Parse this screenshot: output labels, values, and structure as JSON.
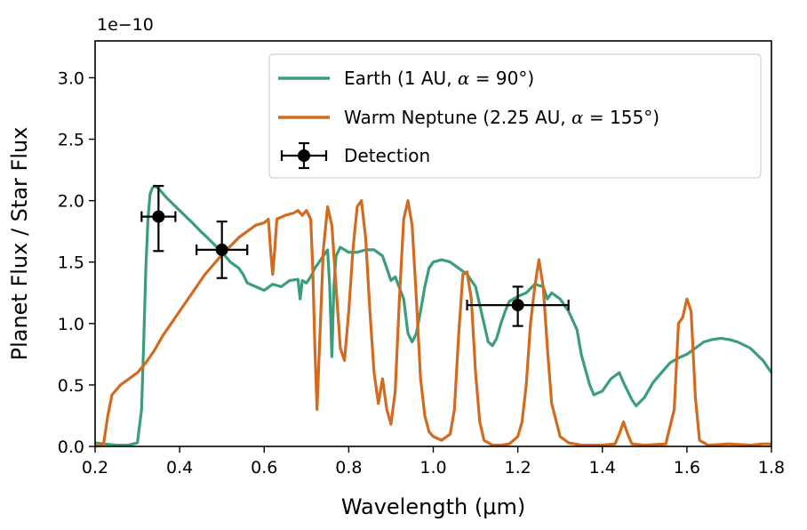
{
  "chart_data": {
    "type": "line",
    "xlabel": "Wavelength (μm)",
    "ylabel": "Planet Flux / Star Flux",
    "y_offset_label": "1e−10",
    "xlim": [
      0.2,
      1.8
    ],
    "ylim": [
      0,
      3.3
    ],
    "xticks": [
      "0.2",
      "0.4",
      "0.6",
      "0.8",
      "1.0",
      "1.2",
      "1.4",
      "1.6",
      "1.8"
    ],
    "yticks": [
      "0.0",
      "0.5",
      "1.0",
      "1.5",
      "2.0",
      "2.5",
      "3.0"
    ],
    "grid": false,
    "legend_position": "top-right",
    "series": [
      {
        "name": "Earth (1 AU,  α = 90°)",
        "legend_prefix": "Earth (1 AU,  ",
        "legend_var": "α",
        "legend_value": " = 90",
        "legend_suffix": "°)",
        "color": "#3a9e7a",
        "points": [
          [
            0.2,
            0.03
          ],
          [
            0.22,
            0.02
          ],
          [
            0.25,
            0.01
          ],
          [
            0.28,
            0.01
          ],
          [
            0.3,
            0.03
          ],
          [
            0.31,
            0.3
          ],
          [
            0.315,
            0.85
          ],
          [
            0.32,
            1.45
          ],
          [
            0.325,
            1.85
          ],
          [
            0.33,
            2.05
          ],
          [
            0.335,
            2.1
          ],
          [
            0.34,
            2.12
          ],
          [
            0.35,
            2.1
          ],
          [
            0.37,
            2.02
          ],
          [
            0.4,
            1.92
          ],
          [
            0.43,
            1.82
          ],
          [
            0.45,
            1.75
          ],
          [
            0.48,
            1.65
          ],
          [
            0.5,
            1.58
          ],
          [
            0.52,
            1.5
          ],
          [
            0.54,
            1.45
          ],
          [
            0.55,
            1.4
          ],
          [
            0.56,
            1.33
          ],
          [
            0.58,
            1.3
          ],
          [
            0.6,
            1.27
          ],
          [
            0.62,
            1.32
          ],
          [
            0.64,
            1.3
          ],
          [
            0.66,
            1.35
          ],
          [
            0.68,
            1.36
          ],
          [
            0.685,
            1.2
          ],
          [
            0.69,
            1.35
          ],
          [
            0.7,
            1.33
          ],
          [
            0.71,
            1.38
          ],
          [
            0.72,
            1.45
          ],
          [
            0.74,
            1.55
          ],
          [
            0.75,
            1.6
          ],
          [
            0.755,
            1.3
          ],
          [
            0.76,
            0.73
          ],
          [
            0.765,
            1.3
          ],
          [
            0.77,
            1.55
          ],
          [
            0.78,
            1.62
          ],
          [
            0.8,
            1.58
          ],
          [
            0.82,
            1.58
          ],
          [
            0.84,
            1.6
          ],
          [
            0.86,
            1.6
          ],
          [
            0.88,
            1.55
          ],
          [
            0.89,
            1.45
          ],
          [
            0.9,
            1.35
          ],
          [
            0.91,
            1.38
          ],
          [
            0.93,
            1.2
          ],
          [
            0.94,
            0.92
          ],
          [
            0.95,
            0.85
          ],
          [
            0.96,
            0.92
          ],
          [
            0.97,
            1.1
          ],
          [
            0.98,
            1.3
          ],
          [
            0.99,
            1.45
          ],
          [
            1.0,
            1.5
          ],
          [
            1.02,
            1.52
          ],
          [
            1.04,
            1.5
          ],
          [
            1.06,
            1.45
          ],
          [
            1.08,
            1.4
          ],
          [
            1.1,
            1.3
          ],
          [
            1.11,
            1.15
          ],
          [
            1.12,
            1.0
          ],
          [
            1.13,
            0.85
          ],
          [
            1.14,
            0.82
          ],
          [
            1.15,
            0.88
          ],
          [
            1.16,
            1.0
          ],
          [
            1.17,
            1.1
          ],
          [
            1.18,
            1.18
          ],
          [
            1.2,
            1.22
          ],
          [
            1.22,
            1.25
          ],
          [
            1.24,
            1.32
          ],
          [
            1.26,
            1.3
          ],
          [
            1.27,
            1.2
          ],
          [
            1.28,
            1.25
          ],
          [
            1.3,
            1.2
          ],
          [
            1.32,
            1.1
          ],
          [
            1.34,
            0.95
          ],
          [
            1.35,
            0.75
          ],
          [
            1.37,
            0.5
          ],
          [
            1.38,
            0.42
          ],
          [
            1.4,
            0.45
          ],
          [
            1.42,
            0.55
          ],
          [
            1.44,
            0.6
          ],
          [
            1.45,
            0.52
          ],
          [
            1.46,
            0.45
          ],
          [
            1.47,
            0.38
          ],
          [
            1.48,
            0.33
          ],
          [
            1.5,
            0.4
          ],
          [
            1.52,
            0.52
          ],
          [
            1.54,
            0.6
          ],
          [
            1.56,
            0.68
          ],
          [
            1.58,
            0.72
          ],
          [
            1.6,
            0.75
          ],
          [
            1.62,
            0.8
          ],
          [
            1.64,
            0.85
          ],
          [
            1.66,
            0.87
          ],
          [
            1.68,
            0.88
          ],
          [
            1.7,
            0.87
          ],
          [
            1.72,
            0.85
          ],
          [
            1.75,
            0.8
          ],
          [
            1.78,
            0.7
          ],
          [
            1.8,
            0.6
          ]
        ]
      },
      {
        "name": "Warm Neptune (2.25 AU, α = 155°)",
        "legend_prefix": "Warm Neptune (2.25 AU, ",
        "legend_var": "α",
        "legend_value": " = 155",
        "legend_suffix": "°)",
        "color": "#d26a1f",
        "points": [
          [
            0.2,
            0.0
          ],
          [
            0.21,
            0.01
          ],
          [
            0.22,
            0.02
          ],
          [
            0.23,
            0.25
          ],
          [
            0.24,
            0.42
          ],
          [
            0.26,
            0.5
          ],
          [
            0.28,
            0.55
          ],
          [
            0.3,
            0.6
          ],
          [
            0.32,
            0.68
          ],
          [
            0.34,
            0.78
          ],
          [
            0.36,
            0.9
          ],
          [
            0.38,
            1.0
          ],
          [
            0.4,
            1.1
          ],
          [
            0.42,
            1.2
          ],
          [
            0.44,
            1.3
          ],
          [
            0.46,
            1.4
          ],
          [
            0.48,
            1.48
          ],
          [
            0.5,
            1.56
          ],
          [
            0.52,
            1.63
          ],
          [
            0.54,
            1.7
          ],
          [
            0.56,
            1.75
          ],
          [
            0.58,
            1.8
          ],
          [
            0.6,
            1.82
          ],
          [
            0.61,
            1.85
          ],
          [
            0.615,
            1.6
          ],
          [
            0.62,
            1.4
          ],
          [
            0.625,
            1.6
          ],
          [
            0.63,
            1.85
          ],
          [
            0.65,
            1.88
          ],
          [
            0.67,
            1.9
          ],
          [
            0.68,
            1.92
          ],
          [
            0.69,
            1.88
          ],
          [
            0.7,
            1.92
          ],
          [
            0.71,
            1.85
          ],
          [
            0.715,
            1.45
          ],
          [
            0.72,
            0.8
          ],
          [
            0.725,
            0.3
          ],
          [
            0.73,
            0.75
          ],
          [
            0.74,
            1.6
          ],
          [
            0.75,
            1.95
          ],
          [
            0.76,
            1.8
          ],
          [
            0.77,
            1.3
          ],
          [
            0.78,
            0.8
          ],
          [
            0.79,
            0.7
          ],
          [
            0.8,
            1.1
          ],
          [
            0.81,
            1.6
          ],
          [
            0.82,
            1.95
          ],
          [
            0.83,
            2.0
          ],
          [
            0.84,
            1.7
          ],
          [
            0.85,
            1.1
          ],
          [
            0.86,
            0.6
          ],
          [
            0.87,
            0.35
          ],
          [
            0.88,
            0.55
          ],
          [
            0.89,
            0.3
          ],
          [
            0.9,
            0.18
          ],
          [
            0.91,
            0.45
          ],
          [
            0.92,
            1.2
          ],
          [
            0.93,
            1.85
          ],
          [
            0.94,
            2.0
          ],
          [
            0.95,
            1.8
          ],
          [
            0.96,
            1.2
          ],
          [
            0.97,
            0.55
          ],
          [
            0.98,
            0.25
          ],
          [
            0.99,
            0.12
          ],
          [
            1.0,
            0.08
          ],
          [
            1.02,
            0.05
          ],
          [
            1.04,
            0.1
          ],
          [
            1.05,
            0.3
          ],
          [
            1.06,
            0.9
          ],
          [
            1.07,
            1.4
          ],
          [
            1.08,
            1.42
          ],
          [
            1.09,
            1.2
          ],
          [
            1.1,
            0.6
          ],
          [
            1.11,
            0.2
          ],
          [
            1.12,
            0.05
          ],
          [
            1.14,
            0.01
          ],
          [
            1.16,
            0.01
          ],
          [
            1.18,
            0.02
          ],
          [
            1.2,
            0.08
          ],
          [
            1.21,
            0.2
          ],
          [
            1.22,
            0.5
          ],
          [
            1.23,
            1.0
          ],
          [
            1.24,
            1.3
          ],
          [
            1.25,
            1.52
          ],
          [
            1.26,
            1.3
          ],
          [
            1.27,
            0.8
          ],
          [
            1.28,
            0.35
          ],
          [
            1.3,
            0.08
          ],
          [
            1.32,
            0.03
          ],
          [
            1.35,
            0.01
          ],
          [
            1.4,
            0.01
          ],
          [
            1.43,
            0.02
          ],
          [
            1.44,
            0.1
          ],
          [
            1.45,
            0.2
          ],
          [
            1.46,
            0.1
          ],
          [
            1.47,
            0.02
          ],
          [
            1.5,
            0.01
          ],
          [
            1.55,
            0.02
          ],
          [
            1.57,
            0.3
          ],
          [
            1.58,
            1.0
          ],
          [
            1.59,
            1.05
          ],
          [
            1.6,
            1.2
          ],
          [
            1.61,
            1.1
          ],
          [
            1.62,
            0.4
          ],
          [
            1.63,
            0.05
          ],
          [
            1.65,
            0.01
          ],
          [
            1.7,
            0.02
          ],
          [
            1.75,
            0.01
          ],
          [
            1.78,
            0.02
          ],
          [
            1.8,
            0.02
          ]
        ]
      }
    ],
    "detection": {
      "name": "Detection",
      "color": "#000000",
      "points": [
        {
          "x": 0.35,
          "y": 1.87,
          "xerr": 0.04,
          "yerr_lo": 0.28,
          "yerr_hi": 0.25
        },
        {
          "x": 0.5,
          "y": 1.6,
          "xerr": 0.06,
          "yerr_lo": 0.23,
          "yerr_hi": 0.23
        },
        {
          "x": 1.2,
          "y": 1.15,
          "xerr": 0.12,
          "yerr_lo": 0.17,
          "yerr_hi": 0.15
        }
      ]
    }
  }
}
